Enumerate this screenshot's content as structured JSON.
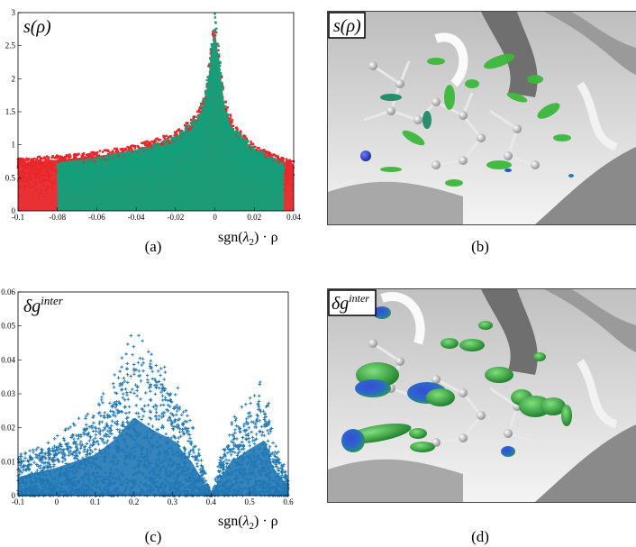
{
  "figure": {
    "panels": {
      "a": {
        "caption": "(a)",
        "label": "s(ρ)",
        "xlabel_prefix": "sgn(",
        "xlabel_lambda": "λ",
        "xlabel_sub": "2",
        "xlabel_suffix": ") · ρ"
      },
      "b": {
        "caption": "(b)",
        "label": "s(ρ)"
      },
      "c": {
        "caption": "(c)",
        "label_main": "δg",
        "label_sup": "inter",
        "xlabel_prefix": "sgn(",
        "xlabel_lambda": "λ",
        "xlabel_sub": "2",
        "xlabel_suffix": ") · ρ"
      },
      "d": {
        "caption": "(d)",
        "label_main": "δg",
        "label_sup": "inter"
      }
    }
  },
  "chart_data": [
    {
      "type": "scatter",
      "panel": "a",
      "title": "",
      "xlabel": "sgn(λ2) · ρ",
      "ylabel": "s(ρ)",
      "xlim": [
        -0.1,
        0.04
      ],
      "ylim": [
        0,
        3
      ],
      "x_ticks": [
        "-0.1",
        "-0.08",
        "-0.06",
        "-0.04",
        "-0.02",
        "0",
        "0.02",
        "0.04"
      ],
      "y_ticks": [
        "0",
        "0.5",
        "1",
        "1.5",
        "2",
        "2.5",
        "3"
      ],
      "series": [
        {
          "color": "#e8262a",
          "envelope_x": [
            -0.1,
            -0.08,
            -0.06,
            -0.04,
            -0.02,
            -0.01,
            -0.005,
            0,
            0.005,
            0.01,
            0.02,
            0.03,
            0.04
          ],
          "envelope_y": [
            0.8,
            0.84,
            0.9,
            1.0,
            1.2,
            1.45,
            1.8,
            2.95,
            1.7,
            1.3,
            1.0,
            0.85,
            0.75
          ]
        },
        {
          "color": "#12a07a",
          "envelope_x": [
            -0.08,
            -0.06,
            -0.04,
            -0.02,
            -0.01,
            -0.005,
            0,
            0.005,
            0.01,
            0.02,
            0.03,
            0.035
          ],
          "envelope_y": [
            0.72,
            0.8,
            0.92,
            1.12,
            1.4,
            1.75,
            3.0,
            1.65,
            1.25,
            0.95,
            0.8,
            0.7
          ]
        }
      ]
    },
    {
      "type": "scatter",
      "panel": "c",
      "title": "",
      "xlabel": "sgn(λ2) · ρ",
      "ylabel": "δg^inter",
      "xlim": [
        -0.1,
        0.6
      ],
      "ylim": [
        0,
        0.06
      ],
      "x_ticks": [
        "-0.1",
        "0",
        "0.1",
        "0.2",
        "0.3",
        "0.4",
        "0.5",
        "0.6"
      ],
      "y_ticks": [
        "0",
        "0.01",
        "0.02",
        "0.03",
        "0.04",
        "0.05",
        "0.06"
      ],
      "series": [
        {
          "color": "#1f77b4",
          "envelope_x": [
            -0.1,
            0.0,
            0.1,
            0.15,
            0.2,
            0.25,
            0.3,
            0.35,
            0.38,
            0.4,
            0.42,
            0.45,
            0.5,
            0.54,
            0.56,
            0.6
          ],
          "envelope_y": [
            0.01,
            0.015,
            0.022,
            0.03,
            0.042,
            0.035,
            0.03,
            0.018,
            0.008,
            0.0,
            0.008,
            0.018,
            0.025,
            0.03,
            0.015,
            0.005
          ]
        }
      ]
    }
  ]
}
